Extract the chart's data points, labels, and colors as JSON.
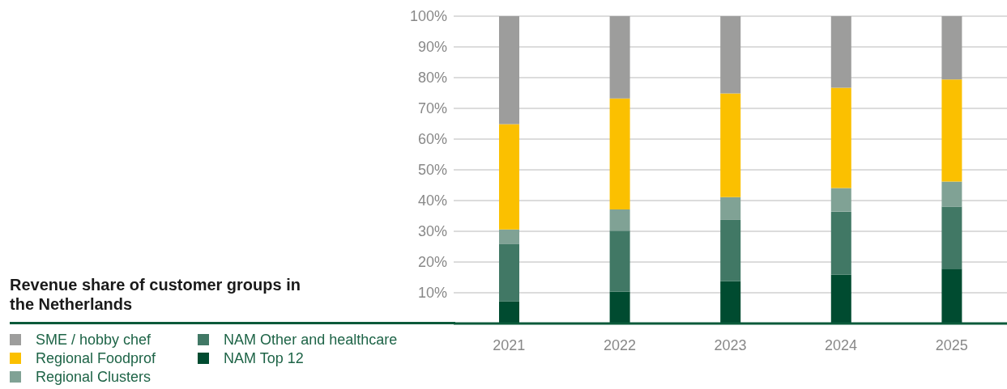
{
  "chart_data": {
    "type": "bar",
    "title": "Revenue share of customer groups in the Netherlands",
    "stacked": true,
    "categories": [
      "2021",
      "2022",
      "2023",
      "2024",
      "2025"
    ],
    "series": [
      {
        "name": "NAM Top 12",
        "color": "#004b30",
        "values": [
          7.2,
          10.3,
          13.8,
          15.9,
          17.8
        ]
      },
      {
        "name": "NAM Other and healthcare",
        "color": "#417865",
        "values": [
          18.6,
          19.9,
          19.9,
          20.5,
          20.2
        ]
      },
      {
        "name": "Regional Clusters",
        "color": "#80a295",
        "values": [
          4.8,
          6.9,
          7.4,
          7.7,
          8.2
        ]
      },
      {
        "name": "Regional Foodprof",
        "color": "#fbc000",
        "values": [
          34.3,
          36.1,
          33.8,
          32.6,
          33.2
        ]
      },
      {
        "name": "SME / hobby chef",
        "color": "#9d9d9c",
        "values": [
          35.1,
          26.8,
          25.1,
          23.3,
          20.6
        ]
      }
    ],
    "ylim": [
      0,
      100
    ],
    "yticks": [
      {
        "value": 10,
        "label": "10%"
      },
      {
        "value": 20,
        "label": "20%"
      },
      {
        "value": 30,
        "label": "30%"
      },
      {
        "value": 40,
        "label": "40%"
      },
      {
        "value": 50,
        "label": "50%"
      },
      {
        "value": 60,
        "label": "60%"
      },
      {
        "value": 70,
        "label": "70%"
      },
      {
        "value": 80,
        "label": "80%"
      },
      {
        "value": 90,
        "label": "90%"
      },
      {
        "value": 100,
        "label": "100%"
      }
    ],
    "grid": "y",
    "legend": "bottom left"
  }
}
